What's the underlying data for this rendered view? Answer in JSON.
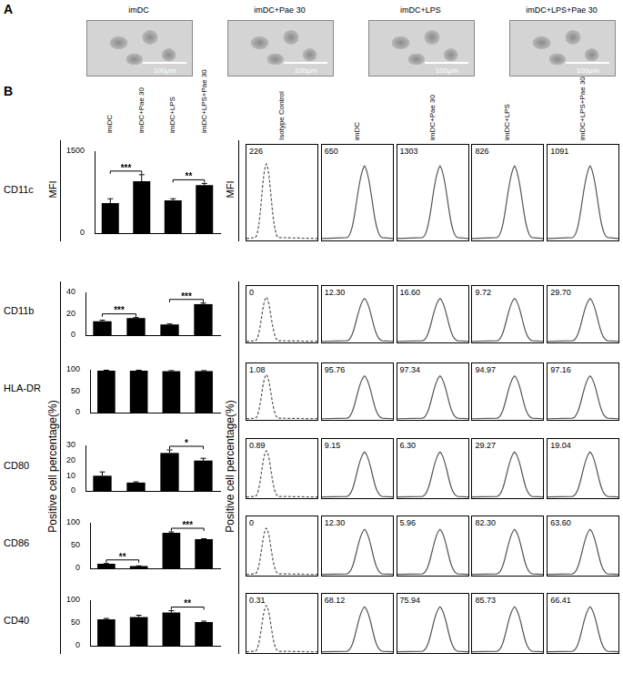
{
  "panel_a": {
    "label": "A",
    "titles": [
      "imDC",
      "imDC+Pae 30",
      "imDC+LPS",
      "imDC+LPS+Pae 30"
    ],
    "scale_bar": "100μm"
  },
  "panel_b": {
    "label": "B",
    "histogram_columns": [
      "Isotype Control",
      "imDC",
      "imDC+Pae 30",
      "imDC+LPS",
      "imDC+LPS+Pae 30"
    ],
    "mfi_label": "MFI",
    "percentage_label": "Positive cell percentage(%)"
  },
  "chart_data": [
    {
      "type": "bar",
      "title": "CD11c",
      "categories": [
        "imDC",
        "imDC+Pae 30",
        "imDC+LPS",
        "imDC+LPS+Pae 30"
      ],
      "values": [
        550,
        950,
        600,
        880
      ],
      "errors": [
        80,
        120,
        30,
        30
      ],
      "color": "#000000",
      "ylim": [
        0,
        1500
      ],
      "yticks": [
        0,
        1500
      ],
      "grid": false,
      "tick_labels": "y",
      "significance": [
        {
          "from": 0,
          "to": 1,
          "label": "***"
        },
        {
          "from": 2,
          "to": 3,
          "label": "**"
        }
      ],
      "histogram_labels": [
        "226",
        "650",
        "1303",
        "826",
        "1091"
      ]
    },
    {
      "type": "bar",
      "title": "CD11b",
      "categories": [
        "imDC",
        "imDC+Pae 30",
        "imDC+LPS",
        "imDC+LPS+Pae 30"
      ],
      "values": [
        13,
        16,
        10,
        29
      ],
      "errors": [
        1,
        0.5,
        0.5,
        1
      ],
      "color": "#000000",
      "ylim": [
        0,
        40
      ],
      "yticks": [
        0,
        20,
        40
      ],
      "grid": false,
      "tick_labels": "y",
      "significance": [
        {
          "from": 0,
          "to": 1,
          "label": "***"
        },
        {
          "from": 2,
          "to": 3,
          "label": "***"
        }
      ],
      "histogram_labels": [
        "0",
        "12.30",
        "16.60",
        "9.72",
        "29.70"
      ]
    },
    {
      "type": "bar",
      "title": "HLA-DR",
      "categories": [
        "imDC",
        "imDC+Pae 30",
        "imDC+LPS",
        "imDC+LPS+Pae 30"
      ],
      "values": [
        98,
        98,
        97,
        97
      ],
      "errors": [
        1,
        1,
        1,
        1
      ],
      "color": "#000000",
      "ylim": [
        0,
        100
      ],
      "yticks": [
        0,
        50,
        100
      ],
      "grid": false,
      "tick_labels": "y",
      "significance": [],
      "histogram_labels": [
        "1.08",
        "95.76",
        "97.34",
        "94.97",
        "97.16"
      ]
    },
    {
      "type": "bar",
      "title": "CD80",
      "categories": [
        "imDC",
        "imDC+Pae 30",
        "imDC+LPS",
        "imDC+LPS+Pae 30"
      ],
      "values": [
        10,
        5.5,
        25,
        20
      ],
      "errors": [
        2.5,
        0.5,
        2,
        1.5
      ],
      "color": "#000000",
      "ylim": [
        0,
        30
      ],
      "yticks": [
        0,
        10,
        20,
        30
      ],
      "grid": false,
      "tick_labels": "y",
      "significance": [
        {
          "from": 2,
          "to": 3,
          "label": "*"
        }
      ],
      "histogram_labels": [
        "0.89",
        "9.15",
        "6.30",
        "29.27",
        "19.04"
      ]
    },
    {
      "type": "bar",
      "title": "CD86",
      "categories": [
        "imDC",
        "imDC+Pae 30",
        "imDC+LPS",
        "imDC+LPS+Pae 30"
      ],
      "values": [
        10,
        5,
        78,
        64
      ],
      "errors": [
        0.5,
        0.5,
        2,
        1
      ],
      "color": "#000000",
      "ylim": [
        0,
        100
      ],
      "yticks": [
        0,
        50,
        100
      ],
      "grid": false,
      "tick_labels": "y",
      "significance": [
        {
          "from": 0,
          "to": 1,
          "label": "**"
        },
        {
          "from": 2,
          "to": 3,
          "label": "***"
        }
      ],
      "histogram_labels": [
        "0",
        "12.30",
        "5.96",
        "82.30",
        "63.60"
      ]
    },
    {
      "type": "bar",
      "title": "CD40",
      "categories": [
        "imDC",
        "imDC+Pae 30",
        "imDC+LPS",
        "imDC+LPS+Pae 30"
      ],
      "values": [
        58,
        63,
        73,
        52
      ],
      "errors": [
        2,
        4,
        4,
        2
      ],
      "color": "#000000",
      "ylim": [
        0,
        100
      ],
      "yticks": [
        0,
        50,
        100
      ],
      "grid": false,
      "tick_labels": "y",
      "significance": [
        {
          "from": 2,
          "to": 3,
          "label": "**"
        }
      ],
      "histogram_labels": [
        "0.31",
        "68.12",
        "75.94",
        "85.73",
        "66.41"
      ]
    }
  ]
}
